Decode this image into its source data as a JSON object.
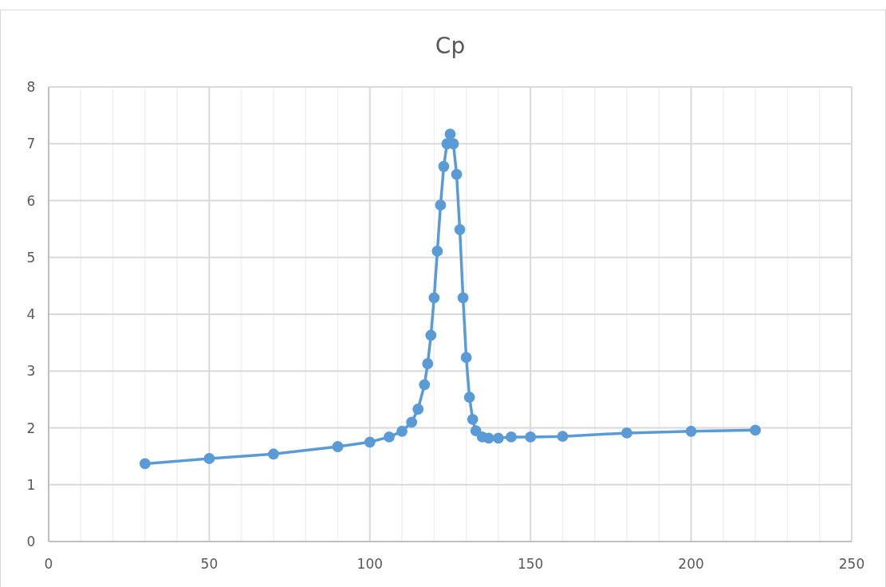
{
  "chart_data": {
    "type": "line",
    "title": "Cp",
    "x": [
      30,
      50,
      70,
      90,
      100,
      106,
      110,
      113,
      115,
      117,
      118,
      119,
      120,
      121,
      122,
      123,
      124,
      125,
      126,
      127,
      128,
      129,
      130,
      131,
      132,
      133,
      135,
      137,
      140,
      144,
      150,
      160,
      180,
      200,
      220
    ],
    "series": [
      {
        "color": "#5b9bd5",
        "values": [
          1.37,
          1.46,
          1.54,
          1.67,
          1.75,
          1.84,
          1.94,
          2.1,
          2.33,
          2.76,
          3.13,
          3.63,
          4.29,
          5.11,
          5.92,
          6.6,
          7.0,
          7.17,
          7.0,
          6.46,
          5.49,
          4.29,
          3.24,
          2.54,
          2.15,
          1.95,
          1.84,
          1.82,
          1.82,
          1.84,
          1.84,
          1.85,
          1.91,
          1.94,
          1.96
        ]
      }
    ],
    "xlim": [
      0,
      250
    ],
    "xticks": [
      0,
      {
        "value": 10,
        "label": null
      },
      {
        "value": 20,
        "label": null
      },
      {
        "value": 30,
        "label": null
      },
      {
        "value": 40,
        "label": null
      },
      50,
      {
        "value": 60,
        "label": null
      },
      {
        "value": 70,
        "label": null
      },
      {
        "value": 80,
        "label": null
      },
      {
        "value": 90,
        "label": null
      },
      100,
      {
        "value": 110,
        "label": null
      },
      {
        "value": 120,
        "label": null
      },
      {
        "value": 130,
        "label": null
      },
      {
        "value": 140,
        "label": null
      },
      150,
      {
        "value": 160,
        "label": null
      },
      {
        "value": 170,
        "label": null
      },
      {
        "value": 180,
        "label": null
      },
      {
        "value": 190,
        "label": null
      },
      200,
      {
        "value": 210,
        "label": null
      },
      {
        "value": 220,
        "label": null
      },
      {
        "value": 230,
        "label": null
      },
      {
        "value": 240,
        "label": null
      },
      250
    ],
    "ylim": [
      0,
      8
    ],
    "yticks": [
      0,
      1,
      2,
      3,
      4,
      5,
      6,
      7,
      8
    ],
    "grid": true,
    "marker": "circle",
    "line_style": "solid"
  }
}
